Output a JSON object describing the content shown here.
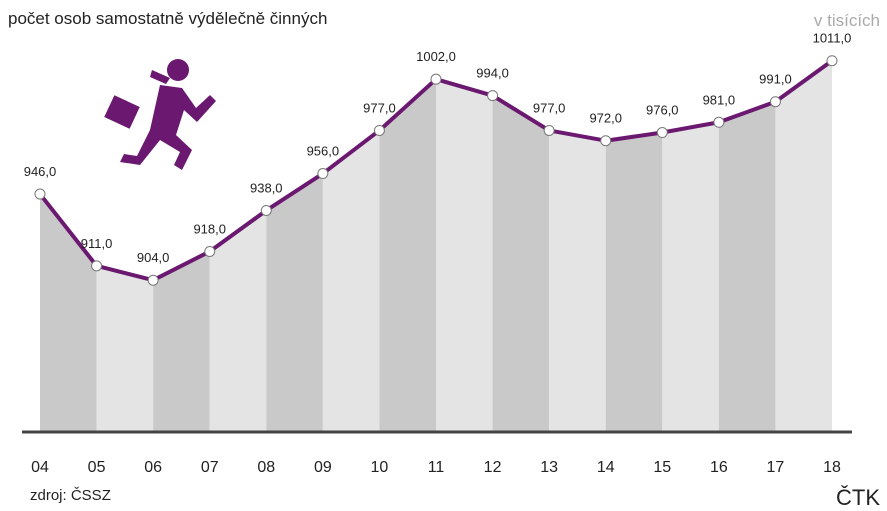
{
  "chart_data": {
    "type": "area-line",
    "title": "počet osob samostatně výdělečně činných",
    "unit_label": "v tisících",
    "source": "zdroj: ČSSZ",
    "credit": "ČTK",
    "categories": [
      "04",
      "05",
      "06",
      "07",
      "08",
      "09",
      "10",
      "11",
      "12",
      "13",
      "14",
      "15",
      "16",
      "17",
      "18"
    ],
    "values": [
      946,
      911,
      904,
      918,
      938,
      956,
      977,
      1002,
      994,
      977,
      972,
      976,
      981,
      991,
      1011
    ],
    "value_labels": [
      "946,0",
      "911,0",
      "904,0",
      "918,0",
      "938,0",
      "956,0",
      "977,0",
      "1002,0",
      "994,0",
      "977,0",
      "972,0",
      "976,0",
      "981,0",
      "991,0",
      "1011,0"
    ],
    "color": "#6b1870",
    "band_colors": [
      "#c9c9c9",
      "#e4e4e4"
    ],
    "ylim": [
      830,
      1025
    ]
  }
}
